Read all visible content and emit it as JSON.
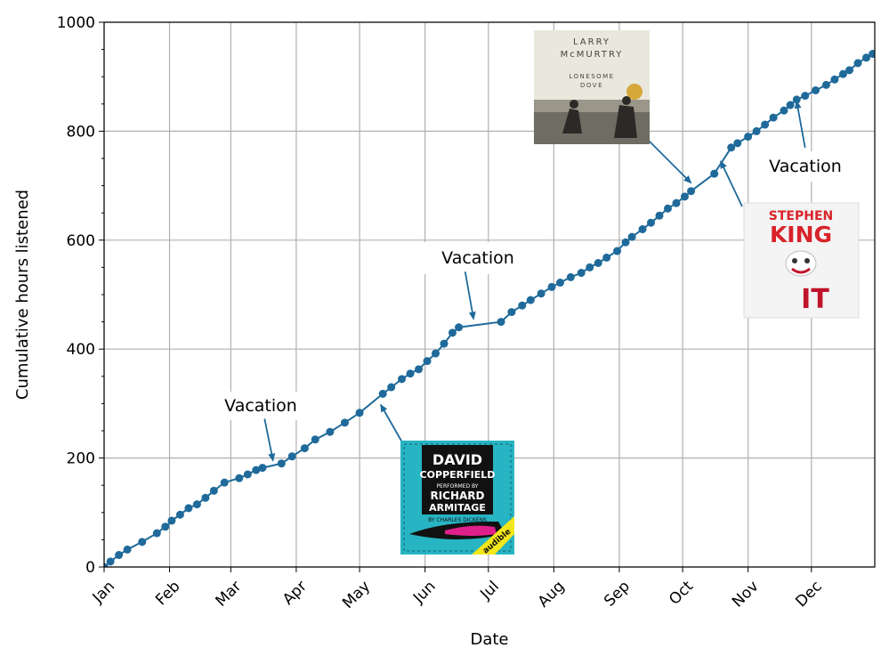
{
  "chart_data": {
    "type": "line",
    "title": "",
    "xlabel": "Date",
    "ylabel": "Cumulative hours listened",
    "xlim": [
      "2020-01-01",
      "2020-12-31"
    ],
    "ylim": [
      0,
      1000
    ],
    "x_ticks": [
      "Jan",
      "Feb",
      "Mar",
      "Apr",
      "May",
      "Jun",
      "Jul",
      "Aug",
      "Sep",
      "Oct",
      "Nov",
      "Dec"
    ],
    "x_tick_dates": [
      "2020-01-01",
      "2020-02-01",
      "2020-03-01",
      "2020-04-01",
      "2020-05-01",
      "2020-06-01",
      "2020-07-01",
      "2020-08-01",
      "2020-09-01",
      "2020-10-01",
      "2020-11-01",
      "2020-12-01"
    ],
    "y_ticks": [
      0,
      200,
      400,
      600,
      800,
      1000
    ],
    "grid": true,
    "line_color": "#1f6a9a",
    "series": [
      {
        "name": "",
        "points": [
          [
            "2020-01-01",
            0
          ],
          [
            "2020-01-04",
            10
          ],
          [
            "2020-01-08",
            22
          ],
          [
            "2020-01-12",
            32
          ],
          [
            "2020-01-19",
            46
          ],
          [
            "2020-01-26",
            62
          ],
          [
            "2020-01-30",
            74
          ],
          [
            "2020-02-02",
            85
          ],
          [
            "2020-02-06",
            96
          ],
          [
            "2020-02-10",
            108
          ],
          [
            "2020-02-14",
            115
          ],
          [
            "2020-02-18",
            127
          ],
          [
            "2020-02-22",
            140
          ],
          [
            "2020-02-27",
            155
          ],
          [
            "2020-03-05",
            163
          ],
          [
            "2020-03-09",
            170
          ],
          [
            "2020-03-13",
            178
          ],
          [
            "2020-03-16",
            182
          ],
          [
            "2020-03-25",
            190
          ],
          [
            "2020-03-30",
            203
          ],
          [
            "2020-04-05",
            218
          ],
          [
            "2020-04-10",
            234
          ],
          [
            "2020-04-17",
            248
          ],
          [
            "2020-04-24",
            265
          ],
          [
            "2020-05-01",
            283
          ],
          [
            "2020-05-12",
            318
          ],
          [
            "2020-05-16",
            330
          ],
          [
            "2020-05-21",
            345
          ],
          [
            "2020-05-25",
            355
          ],
          [
            "2020-05-29",
            363
          ],
          [
            "2020-06-02",
            378
          ],
          [
            "2020-06-06",
            392
          ],
          [
            "2020-06-10",
            410
          ],
          [
            "2020-06-14",
            430
          ],
          [
            "2020-06-17",
            440
          ],
          [
            "2020-07-07",
            450
          ],
          [
            "2020-07-12",
            468
          ],
          [
            "2020-07-17",
            480
          ],
          [
            "2020-07-21",
            490
          ],
          [
            "2020-07-26",
            502
          ],
          [
            "2020-07-31",
            514
          ],
          [
            "2020-08-04",
            522
          ],
          [
            "2020-08-09",
            532
          ],
          [
            "2020-08-14",
            540
          ],
          [
            "2020-08-18",
            550
          ],
          [
            "2020-08-22",
            558
          ],
          [
            "2020-08-26",
            568
          ],
          [
            "2020-08-31",
            580
          ],
          [
            "2020-09-04",
            596
          ],
          [
            "2020-09-07",
            606
          ],
          [
            "2020-09-12",
            620
          ],
          [
            "2020-09-16",
            632
          ],
          [
            "2020-09-20",
            645
          ],
          [
            "2020-09-24",
            658
          ],
          [
            "2020-09-28",
            668
          ],
          [
            "2020-10-02",
            680
          ],
          [
            "2020-10-05",
            690
          ],
          [
            "2020-10-16",
            722
          ],
          [
            "2020-10-24",
            770
          ],
          [
            "2020-10-27",
            778
          ],
          [
            "2020-11-01",
            790
          ],
          [
            "2020-11-05",
            800
          ],
          [
            "2020-11-09",
            812
          ],
          [
            "2020-11-13",
            825
          ],
          [
            "2020-11-18",
            838
          ],
          [
            "2020-11-21",
            848
          ],
          [
            "2020-11-24",
            858
          ],
          [
            "2020-11-28",
            865
          ],
          [
            "2020-12-03",
            875
          ],
          [
            "2020-12-08",
            885
          ],
          [
            "2020-12-12",
            895
          ],
          [
            "2020-12-16",
            905
          ],
          [
            "2020-12-19",
            912
          ],
          [
            "2020-12-23",
            925
          ],
          [
            "2020-12-27",
            935
          ],
          [
            "2020-12-30",
            942
          ],
          [
            "2021-01-03",
            948
          ]
        ]
      }
    ],
    "annotations": [
      {
        "text": "Vacation",
        "text_at": [
          "2020-03-17",
          295
        ],
        "arrow_to": [
          "2020-03-21",
          195
        ]
      },
      {
        "text": "Vacation",
        "text_at": [
          "2020-06-20",
          565
        ],
        "arrow_to": [
          "2020-06-24",
          455
        ]
      },
      {
        "text": "Vacation",
        "text_at": [
          "2020-11-28",
          737
        ],
        "arrow_to": [
          "2020-11-24",
          855
        ]
      }
    ],
    "book_covers": [
      {
        "name": "david-copperfield-cover",
        "arrow_to": [
          "2020-05-11",
          298
        ],
        "title_lines": [
          "DAVID",
          "COPPERFIELD"
        ],
        "performer": [
          "PERFORMED BY",
          "RICHARD",
          "ARMITAGE"
        ],
        "author": "BY CHARLES DICKENS",
        "badge": "audible",
        "bg_color": "#27b4c3"
      },
      {
        "name": "lonesome-dove-cover",
        "arrow_to": [
          "2020-10-05",
          705
        ],
        "author_lines": [
          "LARRY",
          "McMURTRY"
        ],
        "title_lines": [
          "LONESOME",
          "DOVE"
        ],
        "bg_color": "#eae8dc"
      },
      {
        "name": "it-cover",
        "arrow_to": [
          "2020-10-19",
          745
        ],
        "author_lines": [
          "STEPHEN",
          "KING"
        ],
        "title": "IT",
        "bg_color": "#f4f4f4"
      }
    ]
  }
}
